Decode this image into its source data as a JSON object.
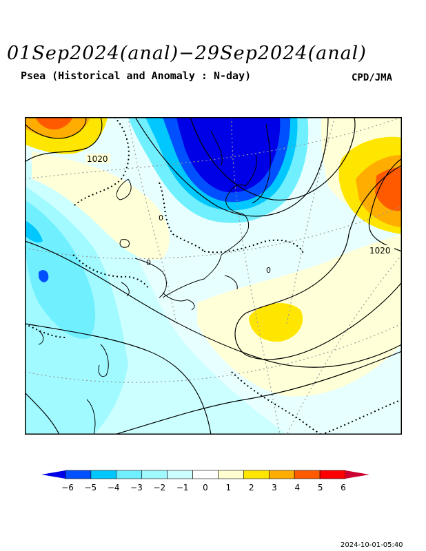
{
  "header": {
    "title": "01Sep2024(anal)−29Sep2024(anal)",
    "subtitle": "Psea (Historical and Anomaly : N-day)",
    "credit": "CPD/JMA"
  },
  "map": {
    "contour_labels": [
      "1020",
      "1020",
      "0",
      "0",
      "0"
    ],
    "colors": {
      "deep_blue": "#0000cc",
      "blue": "#0055ff",
      "cyan": "#00c8ff",
      "light_cyan": "#70f0ff",
      "pale_cyan": "#9ffcff",
      "paler_cyan": "#ccffff",
      "near_white": "#e8ffff",
      "pale_yellow": "#ffffd8",
      "yellow": "#ffe600",
      "orange": "#ffad00",
      "deep_orange": "#ff5a00",
      "red": "#ff0000"
    }
  },
  "legend": {
    "ticks": [
      "−6",
      "−5",
      "−4",
      "−3",
      "−2",
      "−1",
      "0",
      "1",
      "2",
      "3",
      "4",
      "5",
      "6"
    ],
    "colors": [
      "#0000e6",
      "#0050ff",
      "#00c8ff",
      "#70f0ff",
      "#a0faff",
      "#ccffff",
      "#ffffff",
      "#ffffd0",
      "#ffe600",
      "#ffad00",
      "#ff5a00",
      "#ff0000",
      "#cc0030"
    ]
  },
  "footer": {
    "timestamp": "2024-10-01-05:40"
  }
}
